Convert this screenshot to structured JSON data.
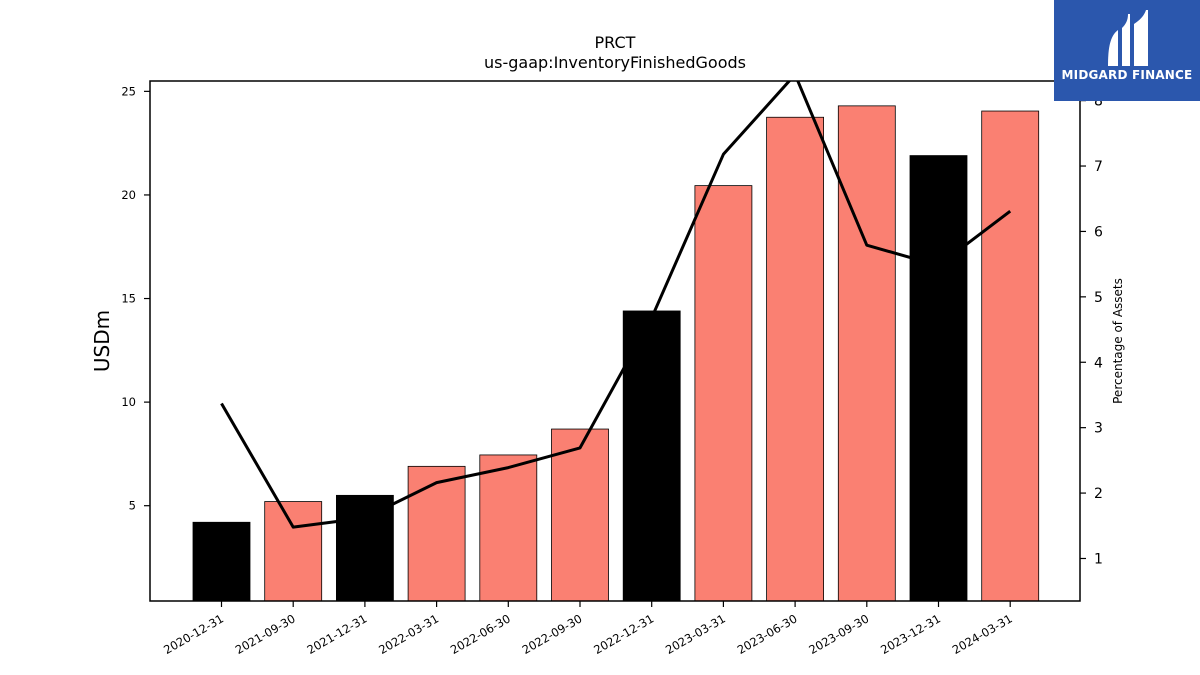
{
  "chart_data": {
    "type": "bar",
    "title": "PRCT",
    "subtitle": "us-gaap:InventoryFinishedGoods",
    "ylabel": "USDm",
    "y2label": "Percentage of Assets",
    "categories": [
      "2020-12-31",
      "2021-09-30",
      "2021-12-31",
      "2022-03-31",
      "2022-06-30",
      "2022-09-30",
      "2022-12-31",
      "2023-03-31",
      "2023-06-30",
      "2023-09-30",
      "2023-12-31",
      "2024-03-31"
    ],
    "series": [
      {
        "values": [
          4.2,
          5.2,
          5.5,
          6.9,
          7.45,
          8.7,
          14.4,
          20.45,
          23.75,
          24.3,
          21.9,
          24.05
        ],
        "colors": [
          "#000000",
          "#fa8072",
          "#000000",
          "#fa8072",
          "#fa8072",
          "#fa8072",
          "#000000",
          "#fa8072",
          "#fa8072",
          "#fa8072",
          "#000000",
          "#fa8072"
        ]
      },
      {
        "type": "line",
        "axis": "right",
        "values": [
          3.37,
          1.48,
          1.62,
          2.16,
          2.39,
          2.69,
          4.68,
          7.18,
          8.4,
          5.79,
          5.48,
          6.31
        ],
        "color": "#000000"
      }
    ],
    "ylim": [
      0.4,
      25.5
    ],
    "y2lim": [
      0.35,
      8.3
    ],
    "yticks": [
      5,
      10,
      15,
      20,
      25
    ],
    "y2ticks": [
      1,
      2,
      3,
      4,
      5,
      6,
      7,
      8
    ]
  },
  "logo": {
    "text": "MIDGARD FINANCE",
    "bg": "#2b57ad"
  }
}
